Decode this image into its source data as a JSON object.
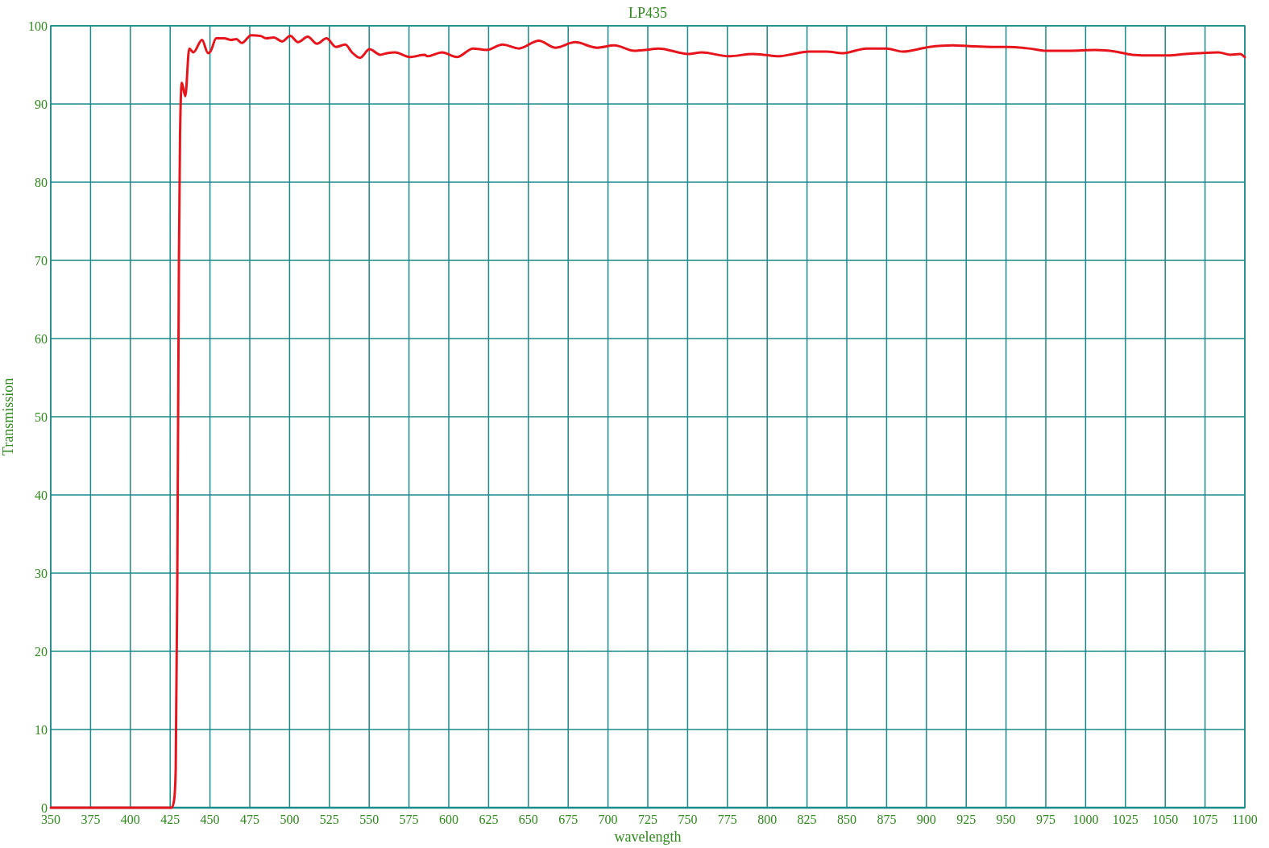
{
  "chart_data": {
    "type": "line",
    "title": "LP435",
    "xlabel": "wavelength",
    "ylabel": "Transmission",
    "xlim": [
      350,
      1100
    ],
    "ylim": [
      0,
      100
    ],
    "xticks": [
      350,
      375,
      400,
      425,
      450,
      475,
      500,
      525,
      550,
      575,
      600,
      625,
      650,
      675,
      700,
      725,
      750,
      775,
      800,
      825,
      850,
      875,
      900,
      925,
      950,
      975,
      1000,
      1025,
      1050,
      1075,
      1100
    ],
    "yticks": [
      0,
      10,
      20,
      30,
      40,
      50,
      60,
      70,
      80,
      90,
      100
    ],
    "grid": true,
    "marker": "none",
    "line_style": "solid",
    "series": [
      {
        "color": "#e8141c",
        "x": [
          350,
          426,
          427.5,
          428.5,
          429.5,
          430.5,
          431.2,
          432.3,
          434.5,
          437.0,
          439.6,
          445.0,
          448.8,
          450.5,
          453.9,
          459.0,
          463.2,
          466.6,
          470.0,
          475.9,
          481.8,
          485.2,
          490.2,
          495.3,
          500.4,
          505.4,
          511.4,
          517.3,
          523.2,
          529.1,
          535.0,
          539.2,
          544.3,
          550.2,
          557.0,
          561.2,
          566.3,
          575.5,
          584.9,
          586.5,
          595.8,
          605.1,
          615.3,
          623.7,
          633.8,
          644.0,
          656.6,
          666.8,
          679.4,
          693.0,
          704.0,
          716.6,
          723.4,
          731.8,
          750.4,
          758.9,
          775.7,
          791.0,
          797.6,
          807.0,
          816.4,
          825.8,
          837.3,
          847.7,
          862.3,
          874.8,
          885.2,
          901.9,
          916.5,
          927.0,
          941.5,
          950.9,
          964.5,
          976.0,
          989.5,
          1006.2,
          1018.8,
          1029.2,
          1041.8,
          1052.1,
          1062.6,
          1070.9,
          1083.4,
          1090.8,
          1096.9,
          1100
        ],
        "values": [
          0,
          0,
          1,
          5,
          30,
          70,
          86,
          92.7,
          91.0,
          97.1,
          96.6,
          98.2,
          96.5,
          96.8,
          98.4,
          98.4,
          98.2,
          98.3,
          97.8,
          98.8,
          98.7,
          98.4,
          98.5,
          98.0,
          98.7,
          97.9,
          98.6,
          97.7,
          98.4,
          97.3,
          97.6,
          96.6,
          95.9,
          97.0,
          96.3,
          96.5,
          96.6,
          96.0,
          96.3,
          96.1,
          96.6,
          96.0,
          97.1,
          96.9,
          97.6,
          97.1,
          98.1,
          97.2,
          97.9,
          97.2,
          97.5,
          96.8,
          96.9,
          97.1,
          96.4,
          96.6,
          96.1,
          96.4,
          96.3,
          96.1,
          96.4,
          96.7,
          96.7,
          96.5,
          97.1,
          97.1,
          96.7,
          97.3,
          97.5,
          97.4,
          97.3,
          97.3,
          97.1,
          96.8,
          96.8,
          96.9,
          96.7,
          96.3,
          96.2,
          96.2,
          96.4,
          96.5,
          96.6,
          96.3,
          96.4,
          96.0
        ]
      }
    ]
  }
}
